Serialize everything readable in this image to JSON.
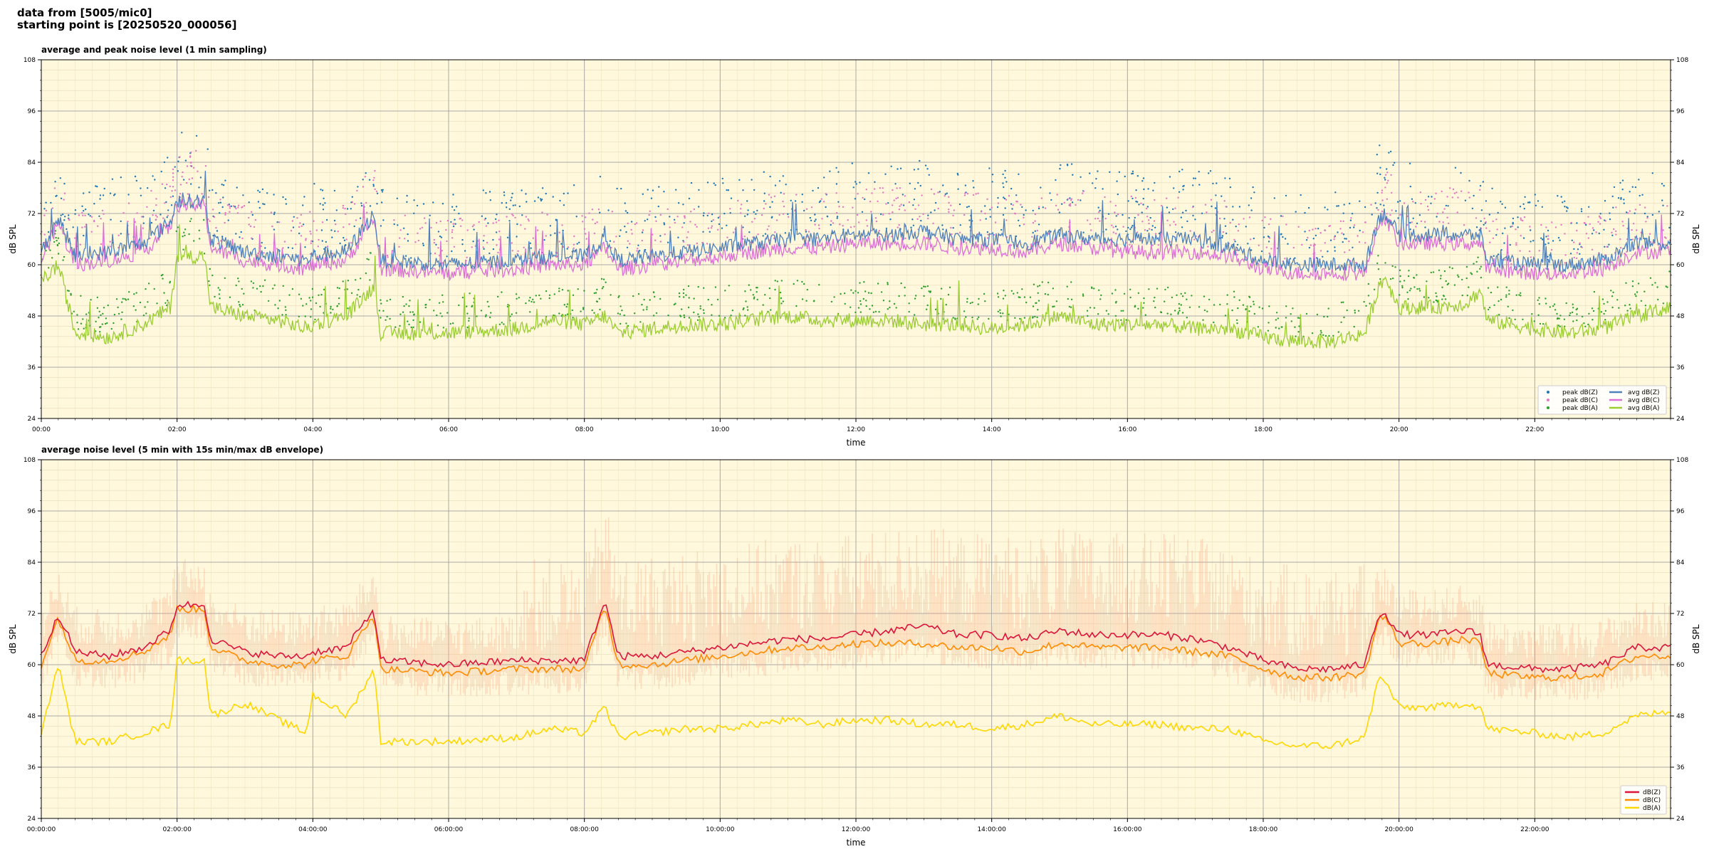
{
  "header": {
    "line1": "data from [5005/mic0]",
    "line2": "starting point is [20250520_000056]"
  },
  "colors": {
    "plot_bg": "#fff8dc",
    "peak_z": "#1f77b4",
    "peak_c": "#e377c2",
    "peak_a": "#2ca02c",
    "avg_z": "#4f81bd",
    "avg_c": "#da70d6",
    "avg_a": "#9acd32",
    "dbz": "#dc143c",
    "dbc": "#ff8c00",
    "dba": "#ffd700",
    "envelope": "#f4a582"
  },
  "chart_data": [
    {
      "type": "line",
      "title": "average and peak noise level (1 min sampling)",
      "xlabel": "time",
      "ylabel": "dB SPL",
      "xlim": [
        0,
        24
      ],
      "ylim": [
        24,
        108
      ],
      "yticks": [
        24,
        36,
        48,
        60,
        72,
        84,
        96,
        108
      ],
      "xticks": [
        0,
        2,
        4,
        6,
        8,
        10,
        12,
        14,
        16,
        18,
        20,
        22
      ],
      "xtick_labels": [
        "00:00",
        "02:00",
        "04:00",
        "06:00",
        "08:00",
        "10:00",
        "12:00",
        "14:00",
        "16:00",
        "18:00",
        "20:00",
        "22:00"
      ],
      "grid": true,
      "legend_position": "bottom-right",
      "legend": [
        "peak dB(Z)",
        "peak dB(C)",
        "peak dB(A)",
        "avg dB(Z)",
        "avg dB(C)",
        "avg dB(A)"
      ],
      "series": [
        {
          "name": "avg dB(Z)",
          "x": [
            0,
            0.25,
            0.5,
            1,
            1.5,
            1.9,
            2.0,
            2.4,
            2.5,
            3,
            3.5,
            3.9,
            4,
            4.5,
            4.9,
            5,
            6,
            7,
            7.5,
            8,
            8.3,
            8.5,
            9,
            9.5,
            10,
            10.5,
            11,
            11.5,
            12,
            12.5,
            13,
            13.5,
            14,
            14.5,
            15,
            15.5,
            16,
            16.5,
            17,
            17.5,
            18,
            18.5,
            19,
            19.5,
            19.7,
            19.8,
            20,
            20.5,
            21,
            21.2,
            21.3,
            22,
            22.5,
            23,
            23.5,
            24
          ],
          "y": [
            63,
            71,
            62,
            63,
            65,
            70,
            75,
            75,
            66,
            63,
            62,
            61,
            62,
            63,
            72,
            61,
            60,
            61,
            62,
            62,
            66,
            61,
            62,
            63,
            64,
            65,
            66,
            66,
            67,
            67,
            68,
            66,
            66,
            65,
            67,
            66,
            66,
            66,
            66,
            64,
            61,
            60,
            60,
            60,
            71,
            72,
            67,
            67,
            67,
            67,
            61,
            60,
            60,
            61,
            65,
            65
          ]
        },
        {
          "name": "avg dB(C)",
          "x": [
            0,
            0.25,
            0.5,
            1,
            1.5,
            1.9,
            2.0,
            2.4,
            2.5,
            3,
            3.5,
            3.9,
            4,
            4.5,
            4.9,
            5,
            6,
            7,
            7.5,
            8,
            8.3,
            8.5,
            9,
            9.5,
            10,
            10.5,
            11,
            11.5,
            12,
            12.5,
            13,
            13.5,
            14,
            14.5,
            15,
            15.5,
            16,
            16.5,
            17,
            17.5,
            18,
            18.5,
            19,
            19.5,
            19.7,
            19.8,
            20,
            20.5,
            21,
            21.2,
            21.3,
            22,
            22.5,
            23,
            23.5,
            24
          ],
          "y": [
            61,
            70,
            60,
            61,
            63,
            69,
            74,
            74,
            64,
            61,
            60,
            59,
            60,
            61,
            71,
            59,
            58,
            59,
            60,
            60,
            64,
            59,
            60,
            61,
            62,
            63,
            64,
            64,
            65,
            65,
            65,
            64,
            64,
            63,
            65,
            64,
            63,
            63,
            63,
            62,
            59,
            58,
            58,
            58,
            70,
            71,
            65,
            65,
            65,
            65,
            59,
            58,
            58,
            59,
            63,
            63
          ]
        },
        {
          "name": "avg dB(A)",
          "x": [
            0,
            0.25,
            0.5,
            1,
            1.5,
            1.9,
            2.0,
            2.4,
            2.5,
            3,
            3.5,
            3.9,
            4,
            4.5,
            4.9,
            5,
            6,
            7,
            7.5,
            8,
            8.3,
            8.5,
            9,
            9.5,
            10,
            10.5,
            11,
            11.5,
            12,
            12.5,
            13,
            13.5,
            14,
            14.5,
            15,
            15.5,
            16,
            16.5,
            17,
            17.5,
            18,
            18.5,
            19,
            19.5,
            19.7,
            19.8,
            20,
            20.5,
            21,
            21.2,
            21.3,
            22,
            22.5,
            23,
            23.5,
            24
          ],
          "y": [
            56,
            60,
            44,
            43,
            46,
            50,
            62,
            62,
            50,
            48,
            47,
            45,
            46,
            48,
            55,
            44,
            44,
            45,
            47,
            46,
            48,
            44,
            45,
            46,
            46,
            47,
            48,
            47,
            47,
            47,
            46,
            46,
            45,
            46,
            48,
            46,
            46,
            46,
            45,
            45,
            43,
            42,
            42,
            44,
            55,
            57,
            50,
            50,
            51,
            54,
            47,
            45,
            44,
            45,
            48,
            50
          ]
        }
      ]
    },
    {
      "type": "line",
      "title": "average noise level (5 min with 15s min/max dB envelope)",
      "xlabel": "time",
      "ylabel": "dB SPL",
      "xlim": [
        0,
        24
      ],
      "ylim": [
        24,
        108
      ],
      "yticks": [
        24,
        36,
        48,
        60,
        72,
        84,
        96,
        108
      ],
      "xticks": [
        0,
        2,
        4,
        6,
        8,
        10,
        12,
        14,
        16,
        18,
        20,
        22
      ],
      "xtick_labels": [
        "00:00:00",
        "02:00:00",
        "04:00:00",
        "06:00:00",
        "08:00:00",
        "10:00:00",
        "12:00:00",
        "14:00:00",
        "16:00:00",
        "18:00:00",
        "20:00:00",
        "22:00:00"
      ],
      "grid": true,
      "legend_position": "bottom-right",
      "legend": [
        "dB(Z)",
        "dB(C)",
        "dB(A)"
      ],
      "series": [
        {
          "name": "dB(Z)",
          "x": [
            0,
            0.25,
            0.5,
            1,
            1.5,
            1.9,
            2.0,
            2.4,
            2.5,
            3,
            3.5,
            3.9,
            4,
            4.5,
            4.9,
            5,
            6,
            7,
            7.5,
            8,
            8.3,
            8.5,
            9,
            9.5,
            10,
            10.5,
            11,
            11.5,
            12,
            12.5,
            13,
            13.5,
            14,
            14.5,
            15,
            15.5,
            16,
            16.5,
            17,
            17.5,
            18,
            18.5,
            19,
            19.5,
            19.7,
            19.8,
            20,
            20.5,
            21,
            21.2,
            21.3,
            22,
            22.5,
            23,
            23.5,
            24
          ],
          "y": [
            62,
            72,
            63,
            62,
            64,
            68,
            74,
            74,
            66,
            63,
            62,
            62,
            63,
            64,
            73,
            61,
            60,
            61,
            61,
            61,
            75,
            62,
            62,
            63,
            64,
            65,
            66,
            66,
            67,
            68,
            69,
            67,
            67,
            66,
            68,
            67,
            67,
            67,
            66,
            64,
            61,
            59,
            59,
            60,
            72,
            72,
            67,
            67,
            68,
            67,
            60,
            59,
            59,
            60,
            64,
            64
          ]
        },
        {
          "name": "dB(C)",
          "x": [
            0,
            0.25,
            0.5,
            1,
            1.5,
            1.9,
            2.0,
            2.4,
            2.5,
            3,
            3.5,
            3.9,
            4,
            4.5,
            4.9,
            5,
            6,
            7,
            7.5,
            8,
            8.3,
            8.5,
            9,
            9.5,
            10,
            10.5,
            11,
            11.5,
            12,
            12.5,
            13,
            13.5,
            14,
            14.5,
            15,
            15.5,
            16,
            16.5,
            17,
            17.5,
            18,
            18.5,
            19,
            19.5,
            19.7,
            19.8,
            20,
            20.5,
            21,
            21.2,
            21.3,
            22,
            22.5,
            23,
            23.5,
            24
          ],
          "y": [
            60,
            71,
            61,
            61,
            63,
            67,
            73,
            73,
            64,
            61,
            60,
            60,
            61,
            62,
            72,
            59,
            58,
            59,
            59,
            59,
            74,
            60,
            60,
            61,
            62,
            63,
            64,
            64,
            65,
            65,
            65,
            64,
            64,
            63,
            65,
            64,
            64,
            64,
            63,
            62,
            59,
            57,
            57,
            58,
            71,
            71,
            65,
            65,
            66,
            65,
            58,
            57,
            57,
            58,
            62,
            62
          ]
        },
        {
          "name": "dB(A)",
          "x": [
            0,
            0.25,
            0.5,
            1,
            1.5,
            1.9,
            2.0,
            2.4,
            2.5,
            3,
            3.5,
            3.9,
            4,
            4.5,
            4.9,
            5,
            6,
            7,
            7.5,
            8,
            8.3,
            8.5,
            9,
            9.5,
            10,
            10.5,
            11,
            11.5,
            12,
            12.5,
            13,
            13.5,
            14,
            14.5,
            15,
            15.5,
            16,
            16.5,
            17,
            17.5,
            18,
            18.5,
            19,
            19.5,
            19.7,
            19.8,
            20,
            20.5,
            21,
            21.2,
            21.3,
            22,
            22.5,
            23,
            23.5,
            24
          ],
          "y": [
            44,
            60,
            42,
            42,
            44,
            46,
            61,
            61,
            48,
            51,
            47,
            44,
            53,
            48,
            59,
            42,
            42,
            43,
            45,
            44,
            50,
            43,
            44,
            45,
            45,
            46,
            47,
            46,
            47,
            47,
            46,
            46,
            45,
            46,
            48,
            46,
            46,
            46,
            45,
            45,
            42,
            41,
            41,
            43,
            57,
            56,
            50,
            50,
            51,
            50,
            45,
            44,
            43,
            44,
            48,
            49
          ]
        }
      ]
    }
  ]
}
